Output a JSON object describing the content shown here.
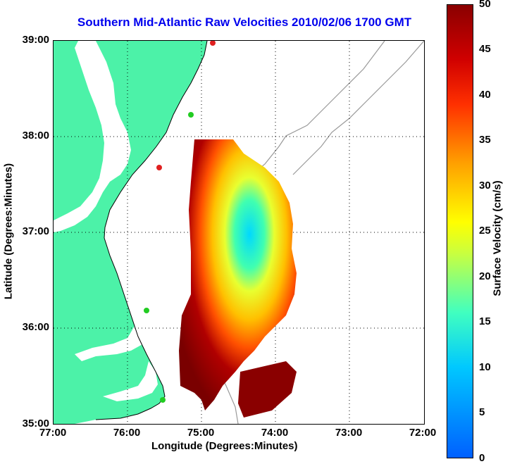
{
  "title": "Southern Mid-Atlantic Raw Velocities 2010/02/06 1700 GMT",
  "axes": {
    "xlabel": "Longitude (Degrees:Minutes)",
    "ylabel": "Latitude (Degrees:Minutes)",
    "xticks": [
      "77:00",
      "76:00",
      "75:00",
      "74:00",
      "73:00",
      "72:00"
    ],
    "yticks": [
      "39:00",
      "38:00",
      "37:00",
      "36:00",
      "35:00"
    ]
  },
  "colorbar": {
    "label": "Surface Velocity (cm/s)",
    "ticks": [
      "50",
      "45",
      "40",
      "35",
      "30",
      "25",
      "20",
      "15",
      "10",
      "5",
      "0"
    ]
  },
  "colors": {
    "land": "#4cf2a8",
    "water": "#ffffff",
    "coast": "#000000",
    "bathymetry": "#999999",
    "grid": "#000000",
    "title": "#0000ee",
    "marker_green": "#22cc22",
    "marker_red": "#e02020"
  }
}
